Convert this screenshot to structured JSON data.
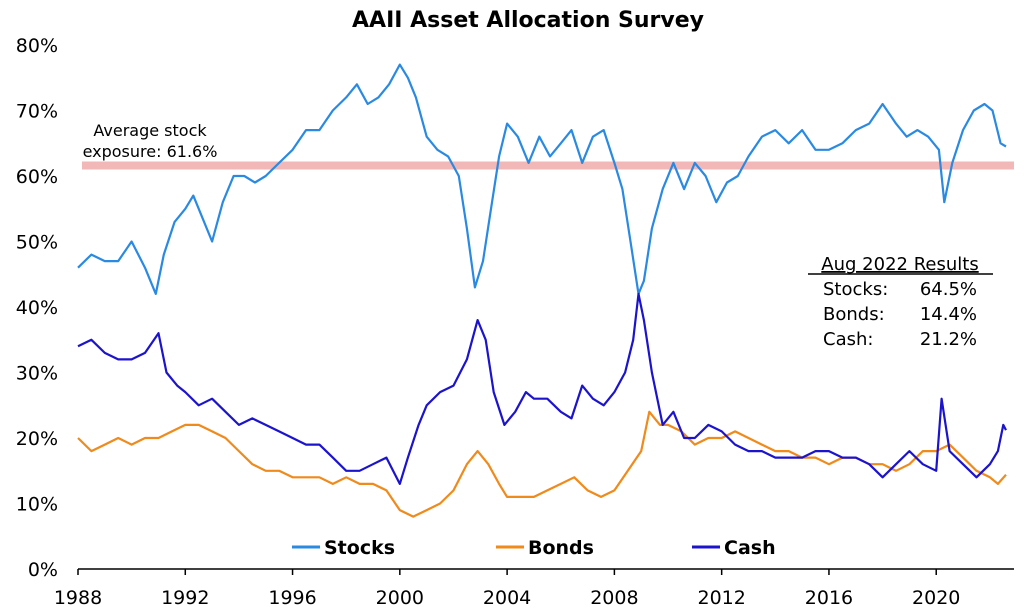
{
  "chart_data": {
    "type": "line",
    "title": "AAII Asset Allocation Survey",
    "xlabel": "",
    "ylabel": "",
    "xlim": [
      1988,
      2022.9
    ],
    "ylim": [
      0,
      80
    ],
    "x_ticks": [
      1988,
      1992,
      1996,
      2000,
      2004,
      2008,
      2012,
      2016,
      2020
    ],
    "x_tick_labels": [
      "1988",
      "1992",
      "1996",
      "2000",
      "2004",
      "2008",
      "2012",
      "2016",
      "2020"
    ],
    "y_ticks": [
      0,
      10,
      20,
      30,
      40,
      50,
      60,
      70,
      80
    ],
    "y_tick_labels": [
      "0%",
      "10%",
      "20%",
      "30%",
      "40%",
      "50%",
      "60%",
      "70%",
      "80%"
    ],
    "grid": false,
    "legend_position": "bottom",
    "series": [
      {
        "name": "Stocks",
        "color": "#2a8ae2",
        "points": [
          [
            1988.0,
            46
          ],
          [
            1988.5,
            48
          ],
          [
            1989.0,
            47
          ],
          [
            1989.5,
            47
          ],
          [
            1990.0,
            50
          ],
          [
            1990.5,
            46
          ],
          [
            1990.9,
            42
          ],
          [
            1991.2,
            48
          ],
          [
            1991.6,
            53
          ],
          [
            1992.0,
            55
          ],
          [
            1992.3,
            57
          ],
          [
            1992.7,
            53
          ],
          [
            1993.0,
            50
          ],
          [
            1993.4,
            56
          ],
          [
            1993.8,
            60
          ],
          [
            1994.2,
            60
          ],
          [
            1994.6,
            59
          ],
          [
            1995.0,
            60
          ],
          [
            1995.5,
            62
          ],
          [
            1996.0,
            64
          ],
          [
            1996.5,
            67
          ],
          [
            1997.0,
            67
          ],
          [
            1997.5,
            70
          ],
          [
            1998.0,
            72
          ],
          [
            1998.4,
            74
          ],
          [
            1998.8,
            71
          ],
          [
            1999.2,
            72
          ],
          [
            1999.6,
            74
          ],
          [
            2000.0,
            77
          ],
          [
            2000.3,
            75
          ],
          [
            2000.6,
            72
          ],
          [
            2001.0,
            66
          ],
          [
            2001.4,
            64
          ],
          [
            2001.8,
            63
          ],
          [
            2002.2,
            60
          ],
          [
            2002.5,
            52
          ],
          [
            2002.8,
            43
          ],
          [
            2003.1,
            47
          ],
          [
            2003.4,
            55
          ],
          [
            2003.7,
            63
          ],
          [
            2004.0,
            68
          ],
          [
            2004.4,
            66
          ],
          [
            2004.8,
            62
          ],
          [
            2005.2,
            66
          ],
          [
            2005.6,
            63
          ],
          [
            2006.0,
            65
          ],
          [
            2006.4,
            67
          ],
          [
            2006.8,
            62
          ],
          [
            2007.2,
            66
          ],
          [
            2007.6,
            67
          ],
          [
            2008.0,
            62
          ],
          [
            2008.3,
            58
          ],
          [
            2008.6,
            50
          ],
          [
            2008.9,
            42
          ],
          [
            2009.1,
            44
          ],
          [
            2009.4,
            52
          ],
          [
            2009.8,
            58
          ],
          [
            2010.2,
            62
          ],
          [
            2010.6,
            58
          ],
          [
            2011.0,
            62
          ],
          [
            2011.4,
            60
          ],
          [
            2011.8,
            56
          ],
          [
            2012.2,
            59
          ],
          [
            2012.6,
            60
          ],
          [
            2013.0,
            63
          ],
          [
            2013.5,
            66
          ],
          [
            2014.0,
            67
          ],
          [
            2014.5,
            65
          ],
          [
            2015.0,
            67
          ],
          [
            2015.5,
            64
          ],
          [
            2016.0,
            64
          ],
          [
            2016.5,
            65
          ],
          [
            2017.0,
            67
          ],
          [
            2017.5,
            68
          ],
          [
            2018.0,
            71
          ],
          [
            2018.5,
            68
          ],
          [
            2018.9,
            66
          ],
          [
            2019.3,
            67
          ],
          [
            2019.7,
            66
          ],
          [
            2020.1,
            64
          ],
          [
            2020.3,
            56
          ],
          [
            2020.6,
            62
          ],
          [
            2021.0,
            67
          ],
          [
            2021.4,
            70
          ],
          [
            2021.8,
            71
          ],
          [
            2022.1,
            70
          ],
          [
            2022.4,
            65
          ],
          [
            2022.6,
            64.5
          ]
        ]
      },
      {
        "name": "Bonds",
        "color": "#ef8a1b",
        "points": [
          [
            1988.0,
            20
          ],
          [
            1988.5,
            18
          ],
          [
            1989.0,
            19
          ],
          [
            1989.5,
            20
          ],
          [
            1990.0,
            19
          ],
          [
            1990.5,
            20
          ],
          [
            1991.0,
            20
          ],
          [
            1991.5,
            21
          ],
          [
            1992.0,
            22
          ],
          [
            1992.5,
            22
          ],
          [
            1993.0,
            21
          ],
          [
            1993.5,
            20
          ],
          [
            1994.0,
            18
          ],
          [
            1994.5,
            16
          ],
          [
            1995.0,
            15
          ],
          [
            1995.5,
            15
          ],
          [
            1996.0,
            14
          ],
          [
            1996.5,
            14
          ],
          [
            1997.0,
            14
          ],
          [
            1997.5,
            13
          ],
          [
            1998.0,
            14
          ],
          [
            1998.5,
            13
          ],
          [
            1999.0,
            13
          ],
          [
            1999.5,
            12
          ],
          [
            2000.0,
            9
          ],
          [
            2000.5,
            8
          ],
          [
            2001.0,
            9
          ],
          [
            2001.5,
            10
          ],
          [
            2002.0,
            12
          ],
          [
            2002.5,
            16
          ],
          [
            2002.9,
            18
          ],
          [
            2003.3,
            16
          ],
          [
            2003.7,
            13
          ],
          [
            2004.0,
            11
          ],
          [
            2004.5,
            11
          ],
          [
            2005.0,
            11
          ],
          [
            2005.5,
            12
          ],
          [
            2006.0,
            13
          ],
          [
            2006.5,
            14
          ],
          [
            2007.0,
            12
          ],
          [
            2007.5,
            11
          ],
          [
            2008.0,
            12
          ],
          [
            2008.5,
            15
          ],
          [
            2009.0,
            18
          ],
          [
            2009.3,
            24
          ],
          [
            2009.7,
            22
          ],
          [
            2010.0,
            22
          ],
          [
            2010.5,
            21
          ],
          [
            2011.0,
            19
          ],
          [
            2011.5,
            20
          ],
          [
            2012.0,
            20
          ],
          [
            2012.5,
            21
          ],
          [
            2013.0,
            20
          ],
          [
            2013.5,
            19
          ],
          [
            2014.0,
            18
          ],
          [
            2014.5,
            18
          ],
          [
            2015.0,
            17
          ],
          [
            2015.5,
            17
          ],
          [
            2016.0,
            16
          ],
          [
            2016.5,
            17
          ],
          [
            2017.0,
            17
          ],
          [
            2017.5,
            16
          ],
          [
            2018.0,
            16
          ],
          [
            2018.5,
            15
          ],
          [
            2019.0,
            16
          ],
          [
            2019.5,
            18
          ],
          [
            2020.0,
            18
          ],
          [
            2020.5,
            19
          ],
          [
            2021.0,
            17
          ],
          [
            2021.5,
            15
          ],
          [
            2022.0,
            14
          ],
          [
            2022.3,
            13
          ],
          [
            2022.6,
            14.4
          ]
        ]
      },
      {
        "name": "Cash",
        "color": "#1c14cc",
        "points": [
          [
            1988.0,
            34
          ],
          [
            1988.5,
            35
          ],
          [
            1989.0,
            33
          ],
          [
            1989.5,
            32
          ],
          [
            1990.0,
            32
          ],
          [
            1990.5,
            33
          ],
          [
            1991.0,
            36
          ],
          [
            1991.3,
            30
          ],
          [
            1991.7,
            28
          ],
          [
            1992.0,
            27
          ],
          [
            1992.5,
            25
          ],
          [
            1993.0,
            26
          ],
          [
            1993.5,
            24
          ],
          [
            1994.0,
            22
          ],
          [
            1994.5,
            23
          ],
          [
            1995.0,
            22
          ],
          [
            1995.5,
            21
          ],
          [
            1996.0,
            20
          ],
          [
            1996.5,
            19
          ],
          [
            1997.0,
            19
          ],
          [
            1997.5,
            17
          ],
          [
            1998.0,
            15
          ],
          [
            1998.5,
            15
          ],
          [
            1999.0,
            16
          ],
          [
            1999.5,
            17
          ],
          [
            2000.0,
            13
          ],
          [
            2000.3,
            17
          ],
          [
            2000.7,
            22
          ],
          [
            2001.0,
            25
          ],
          [
            2001.5,
            27
          ],
          [
            2002.0,
            28
          ],
          [
            2002.5,
            32
          ],
          [
            2002.9,
            38
          ],
          [
            2003.2,
            35
          ],
          [
            2003.5,
            27
          ],
          [
            2003.9,
            22
          ],
          [
            2004.3,
            24
          ],
          [
            2004.7,
            27
          ],
          [
            2005.0,
            26
          ],
          [
            2005.5,
            26
          ],
          [
            2006.0,
            24
          ],
          [
            2006.4,
            23
          ],
          [
            2006.8,
            28
          ],
          [
            2007.2,
            26
          ],
          [
            2007.6,
            25
          ],
          [
            2008.0,
            27
          ],
          [
            2008.4,
            30
          ],
          [
            2008.7,
            35
          ],
          [
            2008.9,
            42
          ],
          [
            2009.1,
            38
          ],
          [
            2009.4,
            30
          ],
          [
            2009.8,
            22
          ],
          [
            2010.2,
            24
          ],
          [
            2010.6,
            20
          ],
          [
            2011.0,
            20
          ],
          [
            2011.5,
            22
          ],
          [
            2012.0,
            21
          ],
          [
            2012.5,
            19
          ],
          [
            2013.0,
            18
          ],
          [
            2013.5,
            18
          ],
          [
            2014.0,
            17
          ],
          [
            2014.5,
            17
          ],
          [
            2015.0,
            17
          ],
          [
            2015.5,
            18
          ],
          [
            2016.0,
            18
          ],
          [
            2016.5,
            17
          ],
          [
            2017.0,
            17
          ],
          [
            2017.5,
            16
          ],
          [
            2018.0,
            14
          ],
          [
            2018.5,
            16
          ],
          [
            2019.0,
            18
          ],
          [
            2019.5,
            16
          ],
          [
            2020.0,
            15
          ],
          [
            2020.2,
            26
          ],
          [
            2020.5,
            18
          ],
          [
            2021.0,
            16
          ],
          [
            2021.5,
            14
          ],
          [
            2022.0,
            16
          ],
          [
            2022.3,
            18
          ],
          [
            2022.5,
            22
          ],
          [
            2022.6,
            21.2
          ]
        ]
      }
    ],
    "reference_line": {
      "value": 61.6,
      "color": "#f2b8b8",
      "label_line1": "Average stock",
      "label_line2": "exposure: 61.6%"
    },
    "results_box": {
      "heading": "Aug 2022 Results",
      "rows": [
        {
          "label": "Stocks:",
          "value": "64.5%"
        },
        {
          "label": "Bonds:",
          "value": "14.4%"
        },
        {
          "label": "Cash:",
          "value": "21.2%"
        }
      ]
    }
  }
}
